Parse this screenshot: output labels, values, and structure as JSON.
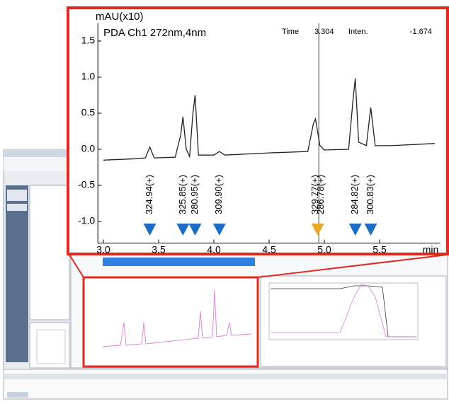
{
  "chart_data": {
    "type": "line",
    "title": "PDA Ch1 272nm,4nm",
    "y_label": "mAU(x10)",
    "x_label": "min",
    "cursor_info": {
      "time_label": "Time",
      "time": "3.304",
      "intensity_label": "Inten.",
      "intensity": "-1.674"
    },
    "color": "#222222",
    "x": [
      3.0,
      3.3,
      3.38,
      3.42,
      3.46,
      3.65,
      3.7,
      3.72,
      3.75,
      3.78,
      3.81,
      3.83,
      3.86,
      4.0,
      4.05,
      4.1,
      4.5,
      4.85,
      4.9,
      4.92,
      4.96,
      5.0,
      5.22,
      5.26,
      5.28,
      5.31,
      5.38,
      5.42,
      5.46,
      5.6,
      6.0
    ],
    "values": [
      -0.15,
      -0.13,
      -0.12,
      0.03,
      -0.12,
      -0.11,
      0.2,
      0.45,
      0.0,
      -0.1,
      0.5,
      0.75,
      -0.08,
      -0.08,
      -0.03,
      -0.08,
      -0.05,
      -0.03,
      0.35,
      0.42,
      0.05,
      -0.01,
      0.0,
      0.7,
      0.98,
      0.1,
      0.05,
      0.58,
      0.05,
      0.05,
      0.08
    ],
    "peak_labels": [
      {
        "x": 3.42,
        "label": "324.94(+)"
      },
      {
        "x": 3.72,
        "label": "325.85(+)"
      },
      {
        "x": 3.83,
        "label": "280.95(+)"
      },
      {
        "x": 4.05,
        "label": "309.90(+)"
      },
      {
        "x": 4.92,
        "label": "329.77(+)"
      },
      {
        "x": 4.97,
        "label": "286.78(+)"
      },
      {
        "x": 5.28,
        "label": "284.82(+)"
      },
      {
        "x": 5.42,
        "label": "300.83(+)"
      }
    ],
    "markers": [
      {
        "x": 3.42,
        "color": "#1a6cc4"
      },
      {
        "x": 3.72,
        "color": "#1a6cc4"
      },
      {
        "x": 3.83,
        "color": "#1a6cc4"
      },
      {
        "x": 4.05,
        "color": "#1a6cc4"
      },
      {
        "x": 4.94,
        "color": "#e8a82c"
      },
      {
        "x": 5.28,
        "color": "#1a6cc4"
      },
      {
        "x": 5.42,
        "color": "#1a6cc4"
      }
    ],
    "cursor_x": 4.95,
    "xlim": [
      2.95,
      6.05
    ],
    "ylim": [
      -1.3,
      1.75
    ],
    "xticks": [
      {
        "value": 3.0,
        "label": "3.0"
      },
      3.5,
      {
        "value": 4.0,
        "label": "4.0"
      },
      4.5,
      {
        "value": 5.0,
        "label": "5.0"
      },
      5.5
    ],
    "yticks": [
      {
        "value": -1.0,
        "label": "-1.0"
      },
      -0.5,
      {
        "value": 0.0,
        "label": "0.0"
      },
      0.5,
      {
        "value": 1.0,
        "label": "1.0"
      },
      1.5
    ]
  }
}
